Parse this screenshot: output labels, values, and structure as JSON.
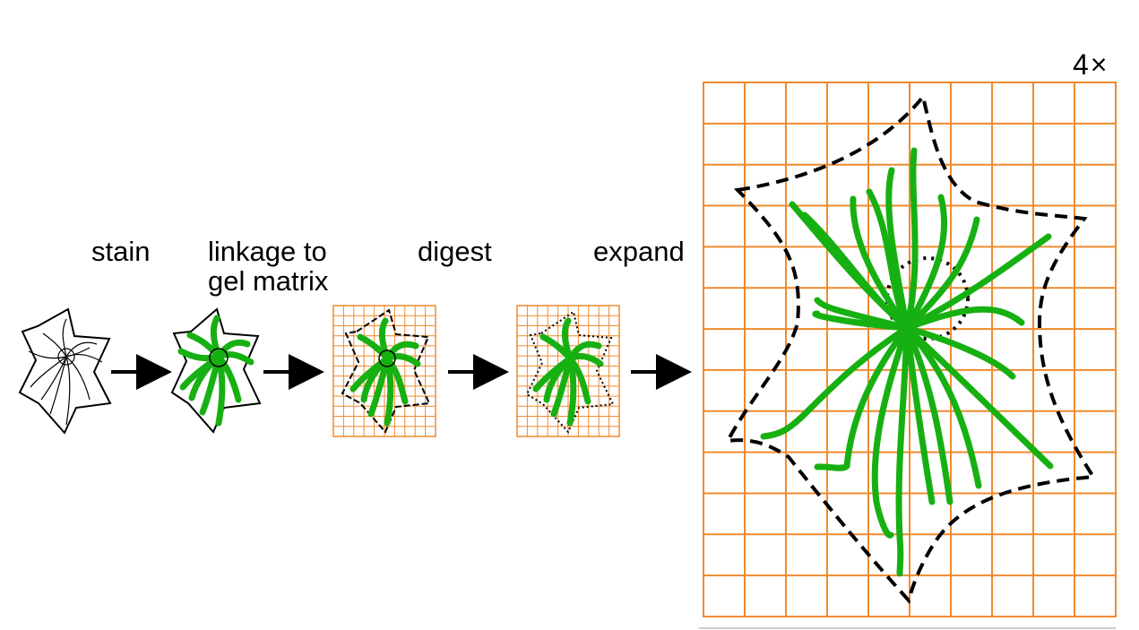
{
  "labels": {
    "stain": "stain",
    "linkage_line1": "linkage to",
    "linkage_line2": "gel matrix",
    "digest": "digest",
    "expand": "expand",
    "expansion_factor": "4×"
  },
  "colors": {
    "gel_grid": "#f08a2e",
    "stain": "#17b012",
    "outline": "#000000",
    "background": "#ffffff"
  },
  "stages": [
    {
      "id": "stain",
      "label_key": "stain"
    },
    {
      "id": "linkage",
      "label_key": "linkage"
    },
    {
      "id": "digest",
      "label_key": "digest"
    },
    {
      "id": "expand",
      "label_key": "expand"
    }
  ]
}
